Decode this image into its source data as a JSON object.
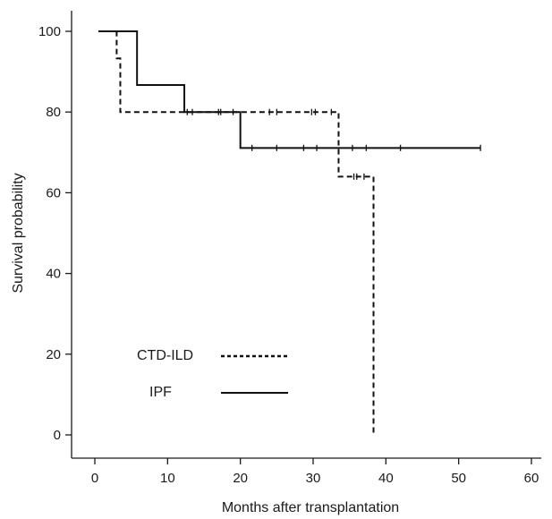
{
  "chart_data": {
    "type": "line",
    "subtype": "kaplan-meier-step",
    "title": "",
    "xlabel": "Months after transplantation",
    "ylabel": "Survival probability",
    "xlim": [
      0,
      60
    ],
    "ylim": [
      0,
      100
    ],
    "xticks": [
      0,
      10,
      20,
      30,
      40,
      50,
      60
    ],
    "yticks": [
      0,
      20,
      40,
      60,
      80,
      100
    ],
    "grid": false,
    "legend_position": "bottom-left",
    "series": [
      {
        "name": "CTD-ILD",
        "line_style": "dashed",
        "color": "#111111",
        "steps": [
          {
            "x": 0.5,
            "y": 100
          },
          {
            "x": 3.0,
            "y": 93.3
          },
          {
            "x": 3.5,
            "y": 80
          },
          {
            "x": 33.5,
            "y": 64
          },
          {
            "x": 38.3,
            "y": 0
          }
        ],
        "censored": [
          {
            "x": 12.7,
            "y": 80
          },
          {
            "x": 13.4,
            "y": 80
          },
          {
            "x": 17.0,
            "y": 80
          },
          {
            "x": 24.0,
            "y": 80
          },
          {
            "x": 25.0,
            "y": 80
          },
          {
            "x": 29.8,
            "y": 80
          },
          {
            "x": 30.3,
            "y": 80
          },
          {
            "x": 32.5,
            "y": 80
          },
          {
            "x": 35.6,
            "y": 64
          },
          {
            "x": 36.0,
            "y": 64
          },
          {
            "x": 37.0,
            "y": 64
          }
        ],
        "end_x": 38.3
      },
      {
        "name": "IPF",
        "line_style": "solid",
        "color": "#111111",
        "steps": [
          {
            "x": 0.5,
            "y": 100
          },
          {
            "x": 5.8,
            "y": 86.7
          },
          {
            "x": 12.3,
            "y": 80
          },
          {
            "x": 20.0,
            "y": 71.1
          }
        ],
        "censored": [
          {
            "x": 17.3,
            "y": 80
          },
          {
            "x": 19.0,
            "y": 80
          },
          {
            "x": 21.6,
            "y": 71.1
          },
          {
            "x": 25.0,
            "y": 71.1
          },
          {
            "x": 28.7,
            "y": 71.1
          },
          {
            "x": 30.5,
            "y": 71.1
          },
          {
            "x": 35.4,
            "y": 71.1
          },
          {
            "x": 37.3,
            "y": 71.1
          },
          {
            "x": 42.0,
            "y": 71.1
          },
          {
            "x": 53.0,
            "y": 71.1
          }
        ],
        "end_x": 53.0
      }
    ]
  }
}
